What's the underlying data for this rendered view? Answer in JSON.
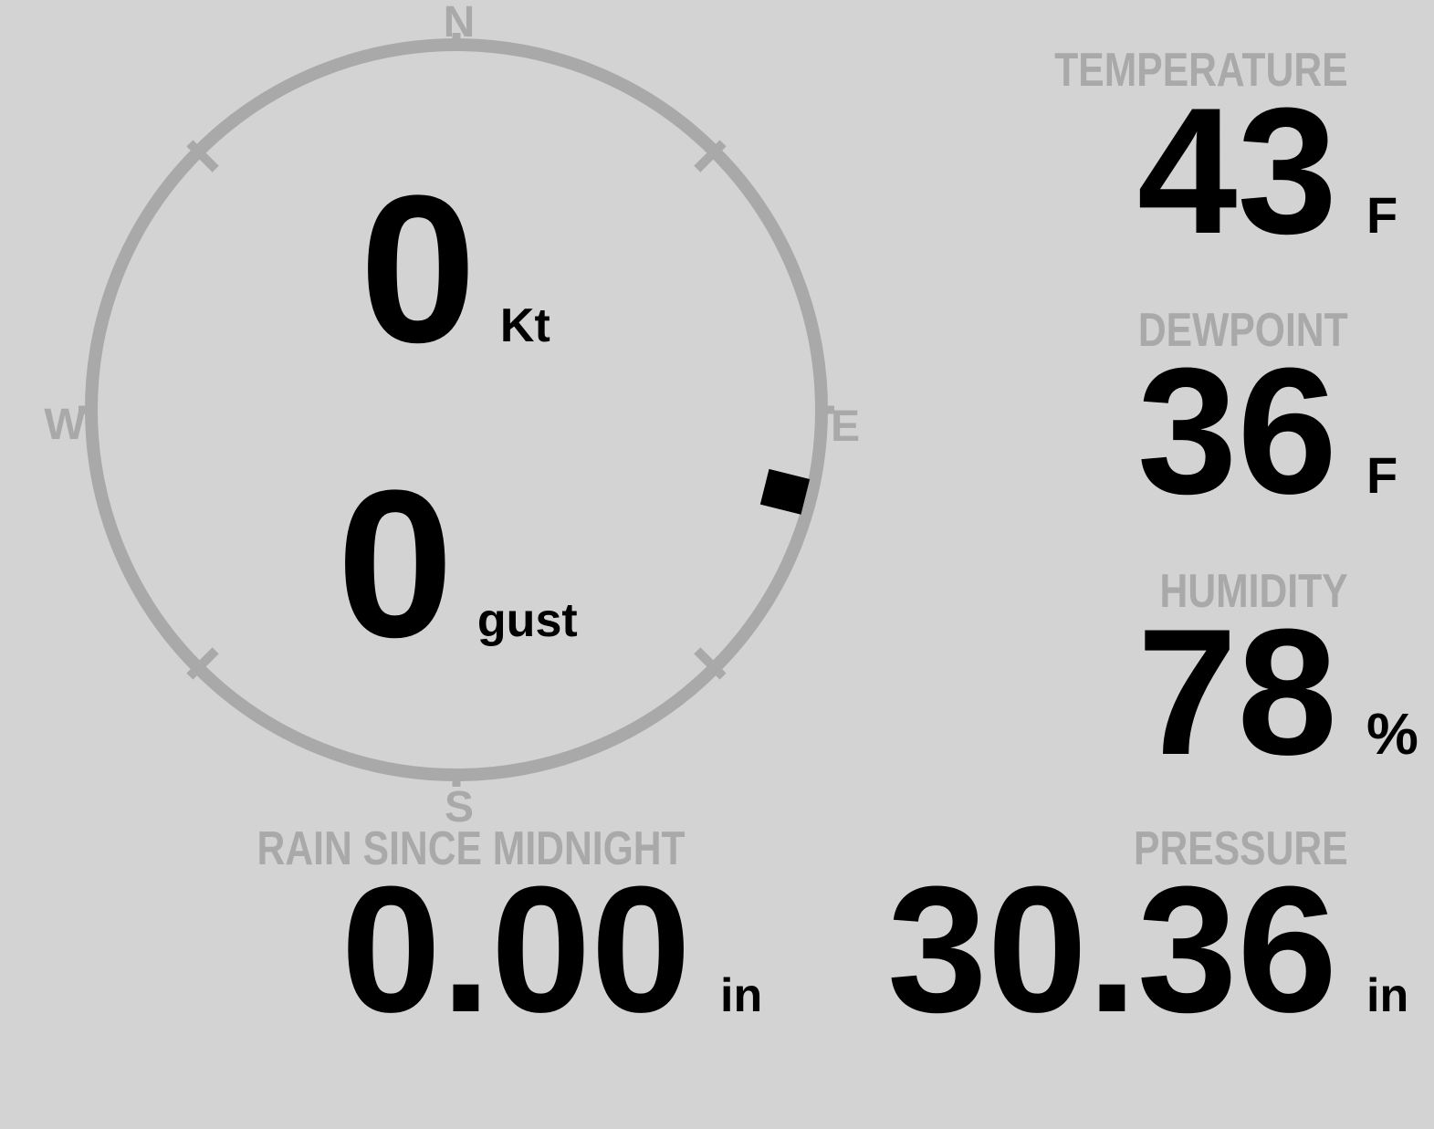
{
  "theme": {
    "background_color": "#d3d3d3",
    "muted_color": "#a9a9a9",
    "value_color": "#000000",
    "marker_color": "#000000"
  },
  "compass": {
    "cardinals": {
      "north": "N",
      "east": "E",
      "south": "S",
      "west": "W"
    },
    "wind_speed": {
      "value": "0",
      "unit": "Kt"
    },
    "wind_gust": {
      "value": "0",
      "unit": "gust"
    },
    "wind_direction_deg": 104
  },
  "metrics": {
    "temperature": {
      "label": "TEMPERATURE",
      "value": "43",
      "unit": "F"
    },
    "dewpoint": {
      "label": "DEWPOINT",
      "value": "36",
      "unit": "F"
    },
    "humidity": {
      "label": "HUMIDITY",
      "value": "78",
      "unit": "%"
    },
    "rain_since_midnight": {
      "label": "RAIN SINCE MIDNIGHT",
      "value": "0.00",
      "unit": "in"
    },
    "pressure": {
      "label": "PRESSURE",
      "value": "30.36",
      "unit": "in"
    }
  }
}
